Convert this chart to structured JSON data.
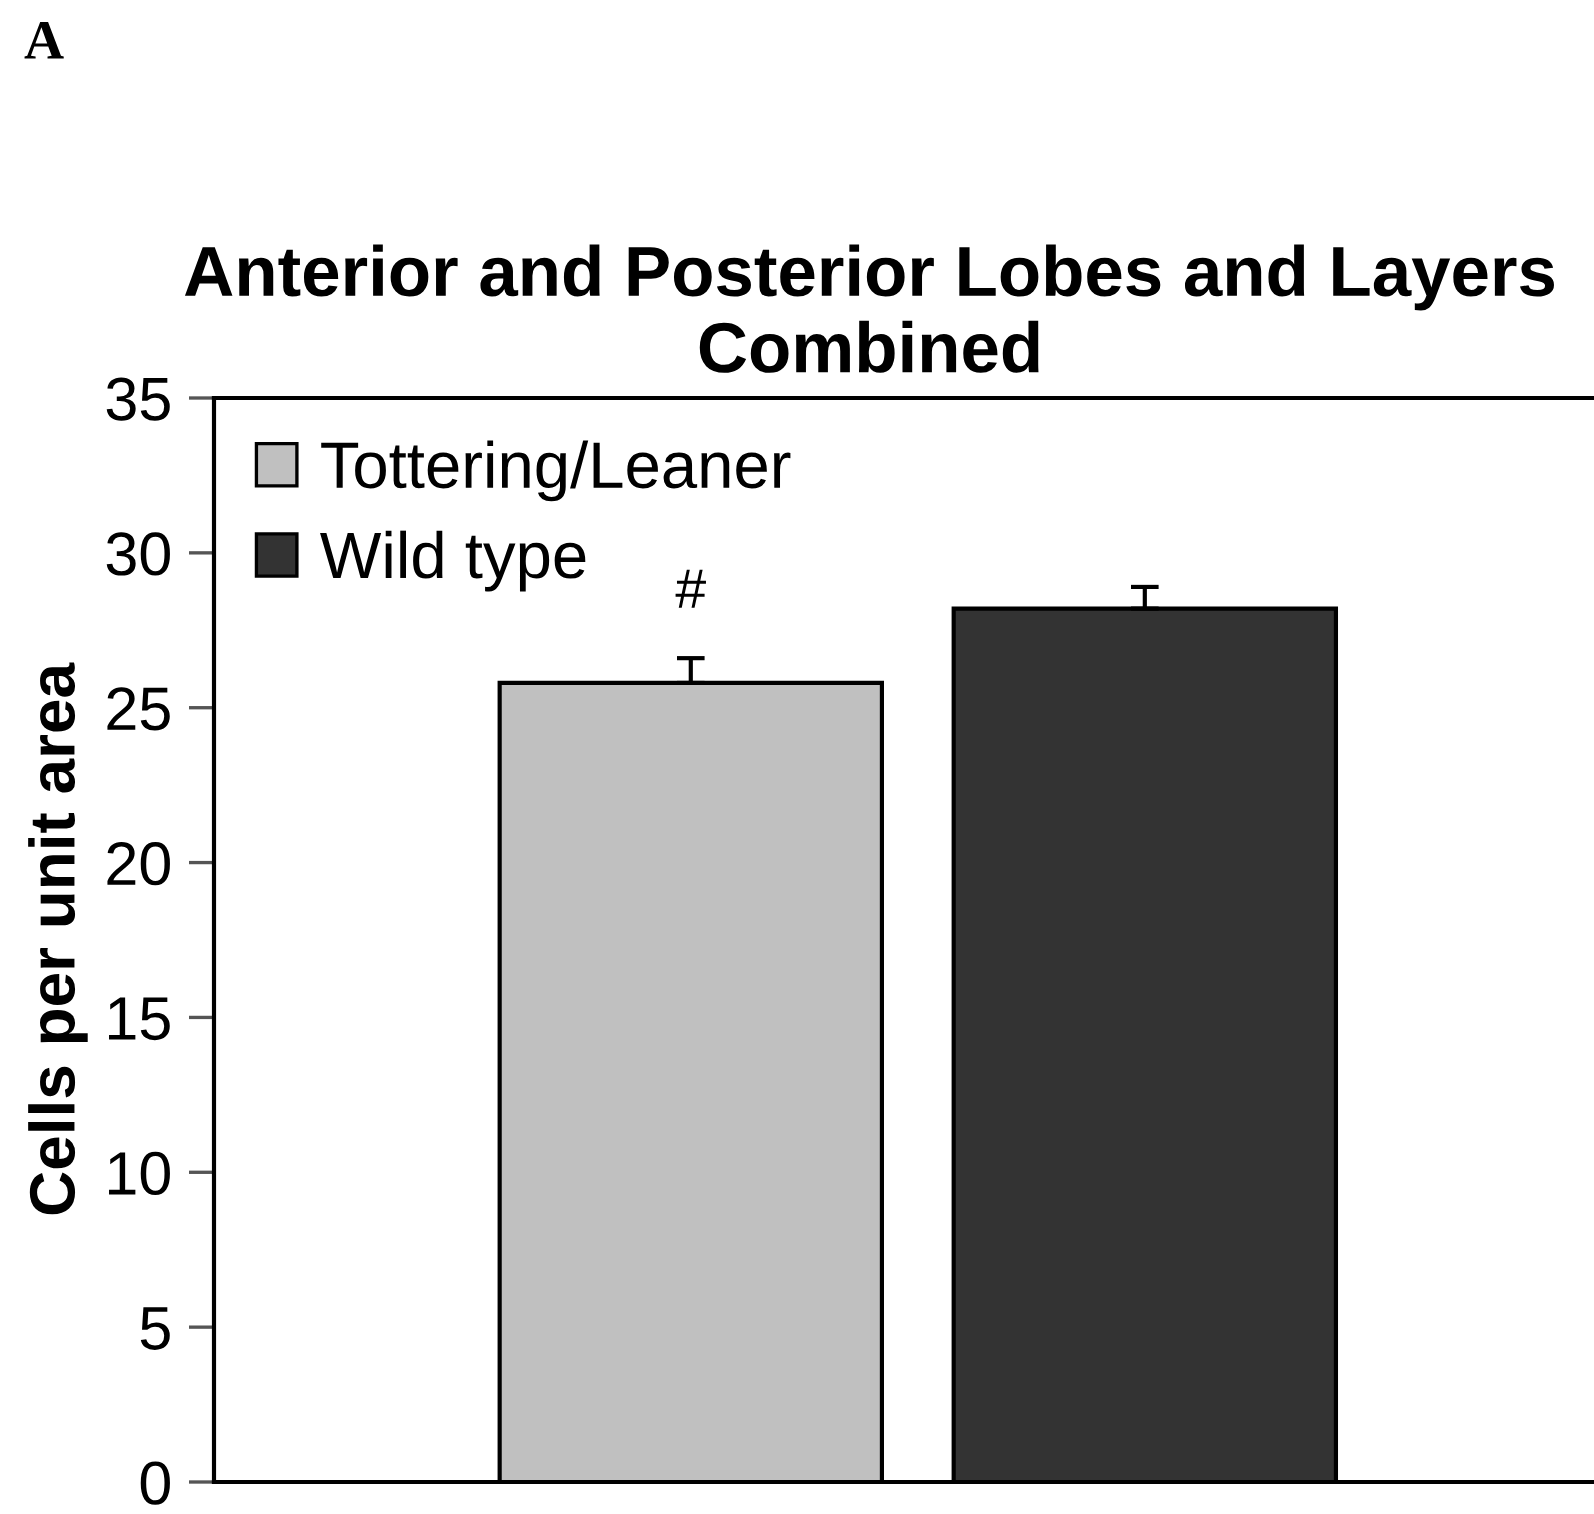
{
  "chart_data": {
    "type": "bar",
    "title": "Anterior and Posterior Lobes and Layers Combined",
    "ylabel": "Cells per unit area",
    "categories": [
      null
    ],
    "series": [
      {
        "name": "Tottering/Leaner",
        "color": "#c0c0c0",
        "values": [
          25.8
        ],
        "errors": [
          [
            25.8,
            26.6
          ]
        ]
      },
      {
        "name": "Wild type",
        "color": "#333333",
        "values": [
          28.2
        ],
        "errors": [
          [
            28.2,
            28.9
          ]
        ]
      }
    ],
    "ylim": [
      0,
      35
    ],
    "yticks": [
      0,
      5,
      10,
      15,
      20,
      25,
      30,
      35
    ],
    "legend": "top left",
    "grid": false,
    "annotations": [
      "A",
      {
        "text": "#",
        "y": 26.6
      }
    ]
  }
}
